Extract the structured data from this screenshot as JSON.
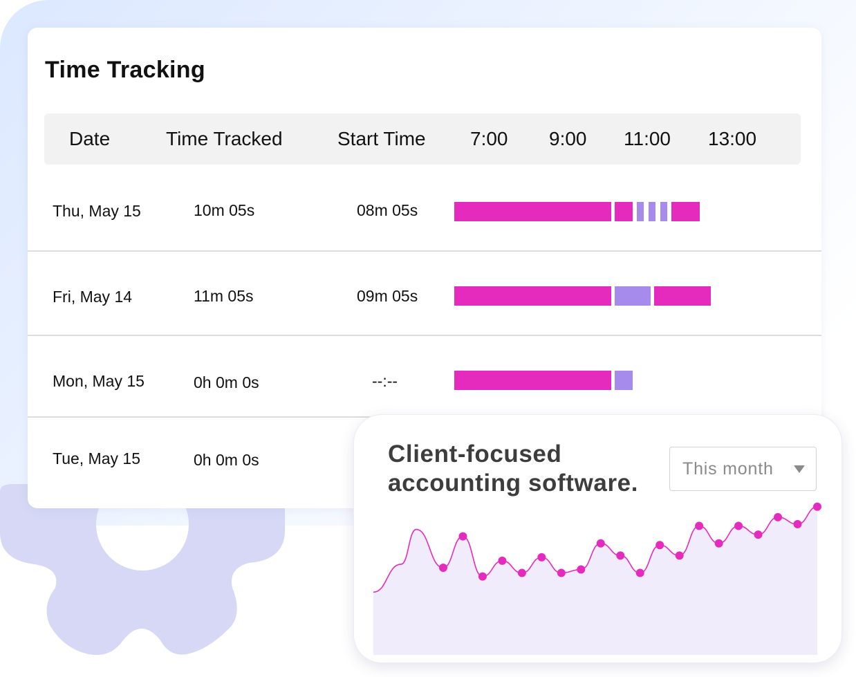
{
  "colors": {
    "tracked_segment": "#e52bbd",
    "idle_segment": "#a78bec",
    "chart_line": "#e52bbd",
    "chart_fill": "#f1ecfb",
    "background_tint": "#dbe8ff",
    "gear": "#d6d8f6"
  },
  "decor": {
    "gear_icon": "gear-icon"
  },
  "time_tracking": {
    "title": "Time Tracking",
    "columns": {
      "date": "Date",
      "time_tracked": "Time Tracked",
      "start_time": "Start Time",
      "hours": [
        "7:00",
        "9:00",
        "11:00",
        "13:00"
      ]
    },
    "rows": [
      {
        "date": "Thu, May 15",
        "time_tracked": "10m 05s",
        "start_time": "08m 05s",
        "segments": [
          {
            "type": "tracked",
            "start": "6:46",
            "end": "10:45"
          },
          {
            "type": "tracked",
            "start": "10:51",
            "end": "11:18"
          },
          {
            "type": "idle",
            "start": "11:24",
            "end": "11:35"
          },
          {
            "type": "idle",
            "start": "11:42",
            "end": "11:53"
          },
          {
            "type": "idle",
            "start": "12:00",
            "end": "12:11"
          },
          {
            "type": "tracked",
            "start": "12:17",
            "end": "13:00"
          }
        ]
      },
      {
        "date": "Fri, May 14",
        "time_tracked": "11m 05s",
        "start_time": "09m 05s",
        "segments": [
          {
            "type": "tracked",
            "start": "6:46",
            "end": "10:45"
          },
          {
            "type": "idle",
            "start": "10:51",
            "end": "11:45"
          },
          {
            "type": "tracked",
            "start": "11:51",
            "end": "13:17"
          }
        ]
      },
      {
        "date": "Mon, May 15",
        "time_tracked": "0h 0m 0s",
        "start_time": "--:--",
        "segments": [
          {
            "type": "tracked",
            "start": "6:46",
            "end": "10:45"
          },
          {
            "type": "idle",
            "start": "10:51",
            "end": "11:18"
          }
        ]
      },
      {
        "date": "Tue, May 15",
        "time_tracked": "0h 0m 0s",
        "start_time": "",
        "segments": []
      }
    ]
  },
  "promo": {
    "title_line1": "Client-focused",
    "title_line2": "accounting software.",
    "period_select": "This month",
    "dropdown_icon": "chevron-down-icon"
  },
  "chart_data": {
    "type": "area",
    "title": "",
    "xlabel": "",
    "ylabel": "",
    "grid": false,
    "legend": "none",
    "x": [
      0,
      1,
      2,
      3,
      4,
      5,
      6,
      7,
      8,
      9,
      10,
      11,
      12,
      13,
      14,
      15,
      16,
      17,
      18,
      19
    ],
    "series": [
      {
        "values": [
          50,
          68,
          45,
          54,
          47,
          56,
          47,
          49,
          64,
          57,
          47,
          63,
          57,
          74,
          64,
          74,
          69,
          79,
          75,
          85
        ]
      }
    ],
    "ylim": [
      0,
      100
    ]
  }
}
